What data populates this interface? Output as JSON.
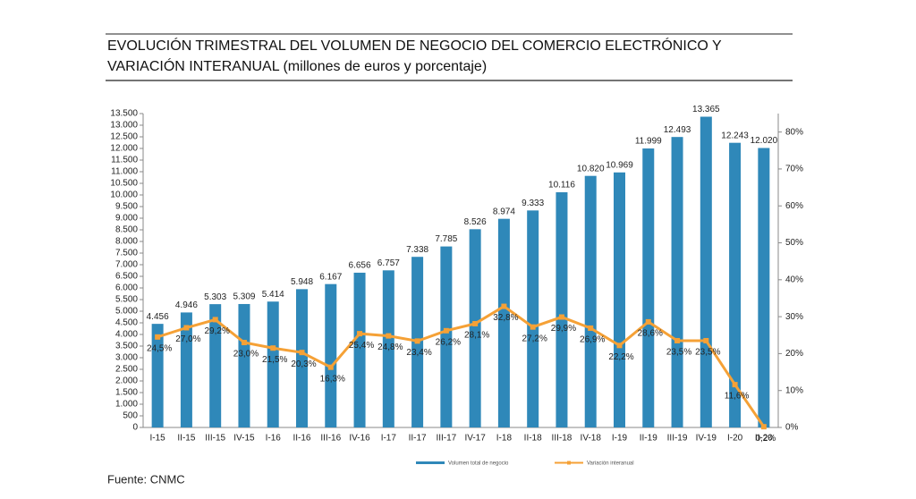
{
  "chart_data": {
    "type": "bar_line",
    "title": [
      "EVOLUCIÓN TRIMESTRAL DEL VOLUMEN DE NEGOCIO DEL COMERCIO ELECTRÓNICO Y",
      "VARIACIÓN INTERANUAL (millones de euros y porcentaje)"
    ],
    "source": "Fuente: CNMC",
    "categories": [
      "I-15",
      "II-15",
      "III-15",
      "IV-15",
      "I-16",
      "II-16",
      "III-16",
      "IV-16",
      "I-17",
      "II-17",
      "III-17",
      "IV-17",
      "I-18",
      "II-18",
      "III-18",
      "IV-18",
      "I-19",
      "II-19",
      "III-19",
      "IV-19",
      "I-20",
      "II-20"
    ],
    "series": [
      {
        "name": "Volumen total de negocio",
        "type": "bar",
        "color": "#2f88b9",
        "values": [
          4456,
          4946,
          5303,
          5309,
          5414,
          5948,
          6167,
          6656,
          6757,
          7338,
          7785,
          8526,
          8974,
          9333,
          10116,
          10820,
          10969,
          11999,
          12493,
          13365,
          12243,
          12020
        ],
        "value_labels": [
          "4.456",
          "4.946",
          "5.303",
          "5.309",
          "5.414",
          "5.948",
          "6.167",
          "6.656",
          "6.757",
          "7.338",
          "7.785",
          "8.526",
          "8.974",
          "9.333",
          "10.116",
          "10.820",
          "10.969",
          "11.999",
          "12.493",
          "13.365",
          "12.243",
          "12.020"
        ]
      },
      {
        "name": "Variación interanual",
        "type": "line",
        "axis": "y2",
        "color": "#f5a136",
        "values": [
          24.5,
          27.0,
          29.2,
          23.0,
          21.5,
          20.3,
          16.3,
          25.4,
          24.8,
          23.4,
          26.2,
          28.1,
          32.8,
          27.2,
          29.9,
          26.9,
          22.2,
          28.6,
          23.5,
          23.5,
          11.6,
          0.2
        ],
        "value_labels": [
          "24,5%",
          "27,0%",
          "29,2%",
          "23,0%",
          "21,5%",
          "20,3%",
          "16,3%",
          "25,4%",
          "24,8%",
          "23,4%",
          "26,2%",
          "28,1%",
          "32,8%",
          "27,2%",
          "29,9%",
          "26,9%",
          "22,2%",
          "28,6%",
          "23,5%",
          "23,5%",
          "11,6%",
          "0,2%"
        ]
      }
    ],
    "ylim": [
      0,
      13500
    ],
    "yticks": [
      0,
      500,
      {
        "value": 1000,
        "label": "1.000"
      },
      {
        "value": 1500,
        "label": "1.500"
      },
      {
        "value": 2000,
        "label": "2.000"
      },
      {
        "value": 2500,
        "label": "2.500"
      },
      {
        "value": 3000,
        "label": "3.000"
      },
      {
        "value": 3500,
        "label": "3.500"
      },
      {
        "value": 4000,
        "label": "4.000"
      },
      {
        "value": 4500,
        "label": "4.500"
      },
      {
        "value": 5000,
        "label": "5.000"
      },
      {
        "value": 5500,
        "label": "5.500"
      },
      {
        "value": 6000,
        "label": "6.000"
      },
      {
        "value": 6500,
        "label": "6.500"
      },
      {
        "value": 7000,
        "label": "7.000"
      },
      {
        "value": 7500,
        "label": "7.500"
      },
      {
        "value": 8000,
        "label": "8.000"
      },
      {
        "value": 8500,
        "label": "8.500"
      },
      {
        "value": 9000,
        "label": "9.000"
      },
      {
        "value": 9500,
        "label": "9.500"
      },
      {
        "value": 10000,
        "label": "10.000"
      },
      {
        "value": 10500,
        "label": "10.500"
      },
      {
        "value": 11000,
        "label": "11.000"
      },
      {
        "value": 11500,
        "label": "11.500"
      },
      {
        "value": 12000,
        "label": "12.000"
      },
      {
        "value": 12500,
        "label": "12.500"
      },
      {
        "value": 13000,
        "label": "13.000"
      },
      {
        "value": 13500,
        "label": "13.500"
      }
    ],
    "y2lim": [
      0,
      85
    ],
    "y2ticks": [
      {
        "value": 0,
        "label": "0%"
      },
      {
        "value": 10,
        "label": "10%"
      },
      {
        "value": 20,
        "label": "20%"
      },
      {
        "value": 30,
        "label": "30%"
      },
      {
        "value": 40,
        "label": "40%"
      },
      {
        "value": 50,
        "label": "50%"
      },
      {
        "value": 60,
        "label": "60%"
      },
      {
        "value": 70,
        "label": "70%"
      },
      {
        "value": 80,
        "label": "80%"
      }
    ],
    "grid": false
  }
}
